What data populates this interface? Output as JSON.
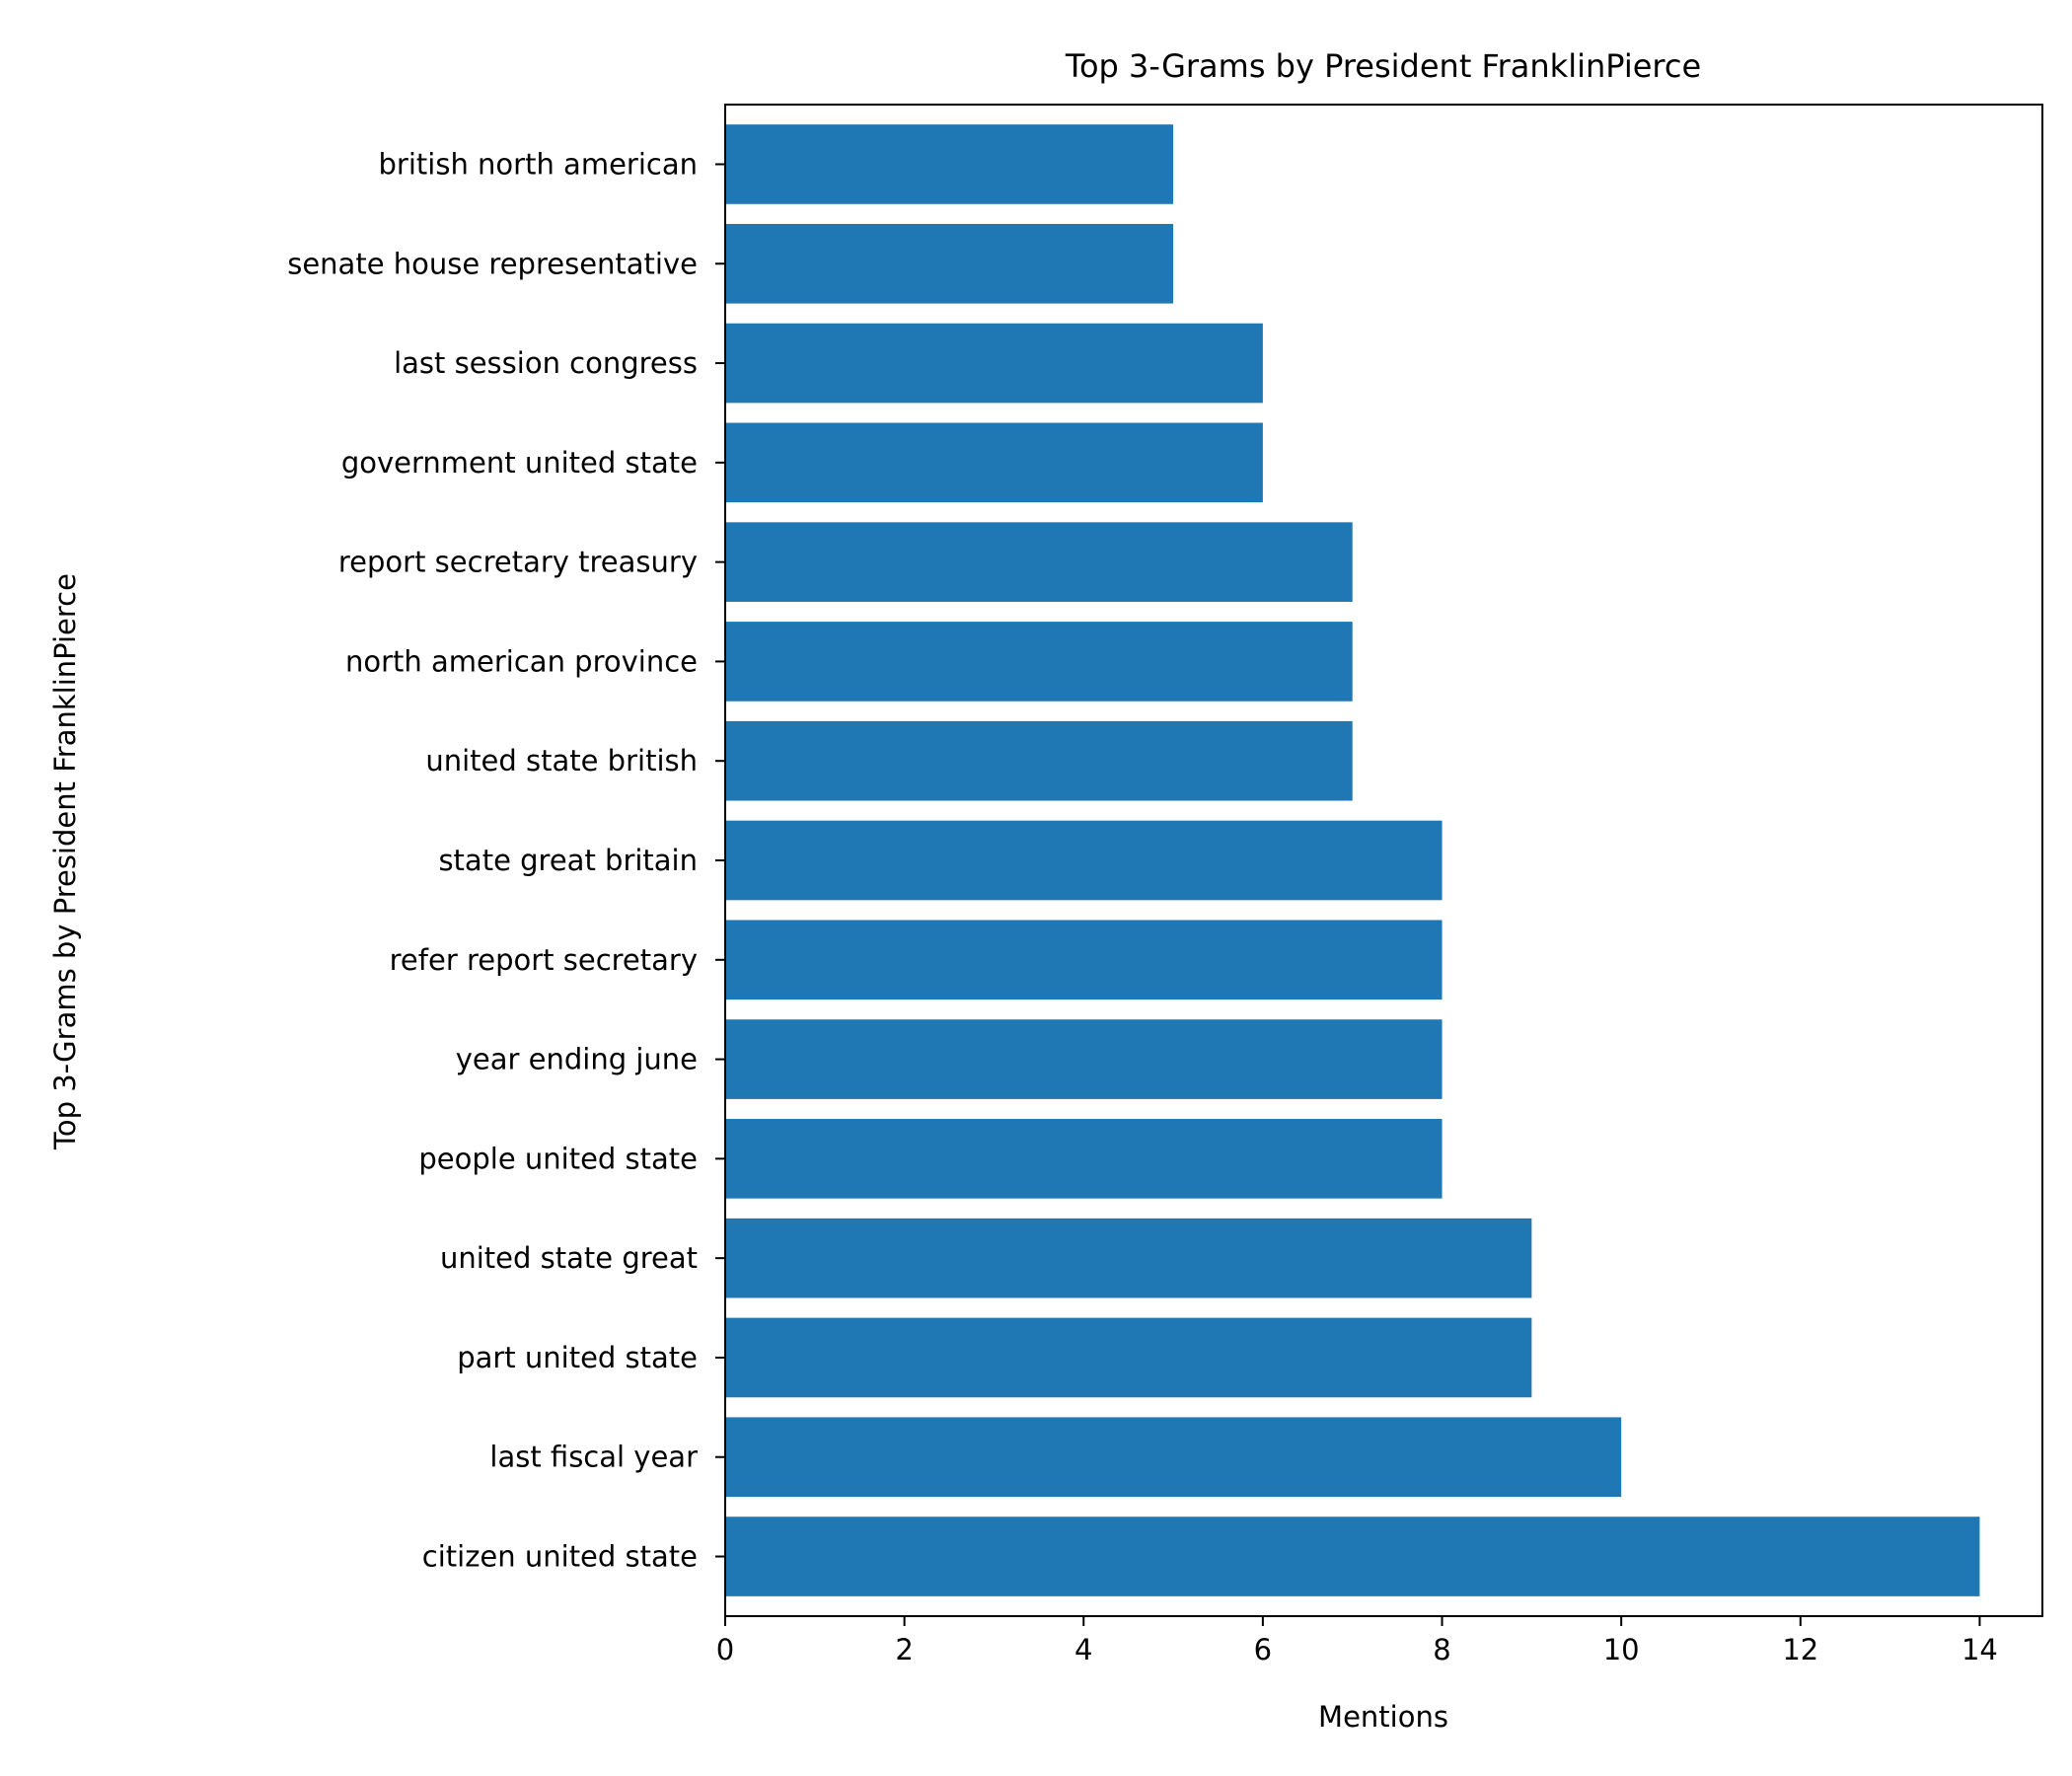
{
  "chart_data": {
    "type": "bar",
    "orientation": "horizontal",
    "title": "Top 3-Grams by President FranklinPierce",
    "xlabel": "Mentions",
    "ylabel": "Top 3-Grams by President FranklinPierce",
    "xlim": [
      0,
      14.7
    ],
    "xticks": [
      0,
      2,
      4,
      6,
      8,
      10,
      12,
      14
    ],
    "grid": false,
    "bar_color": "#1f77b4",
    "categories": [
      "citizen united state",
      "last fiscal year",
      "part united state",
      "united state great",
      "people united state",
      "year ending june",
      "refer report secretary",
      "state great britain",
      "united state british",
      "north american province",
      "report secretary treasury",
      "government united state",
      "last session congress",
      "senate house representative",
      "british north american"
    ],
    "values": [
      14,
      10,
      9,
      9,
      8,
      8,
      8,
      8,
      7,
      7,
      7,
      6,
      6,
      5,
      5
    ]
  }
}
